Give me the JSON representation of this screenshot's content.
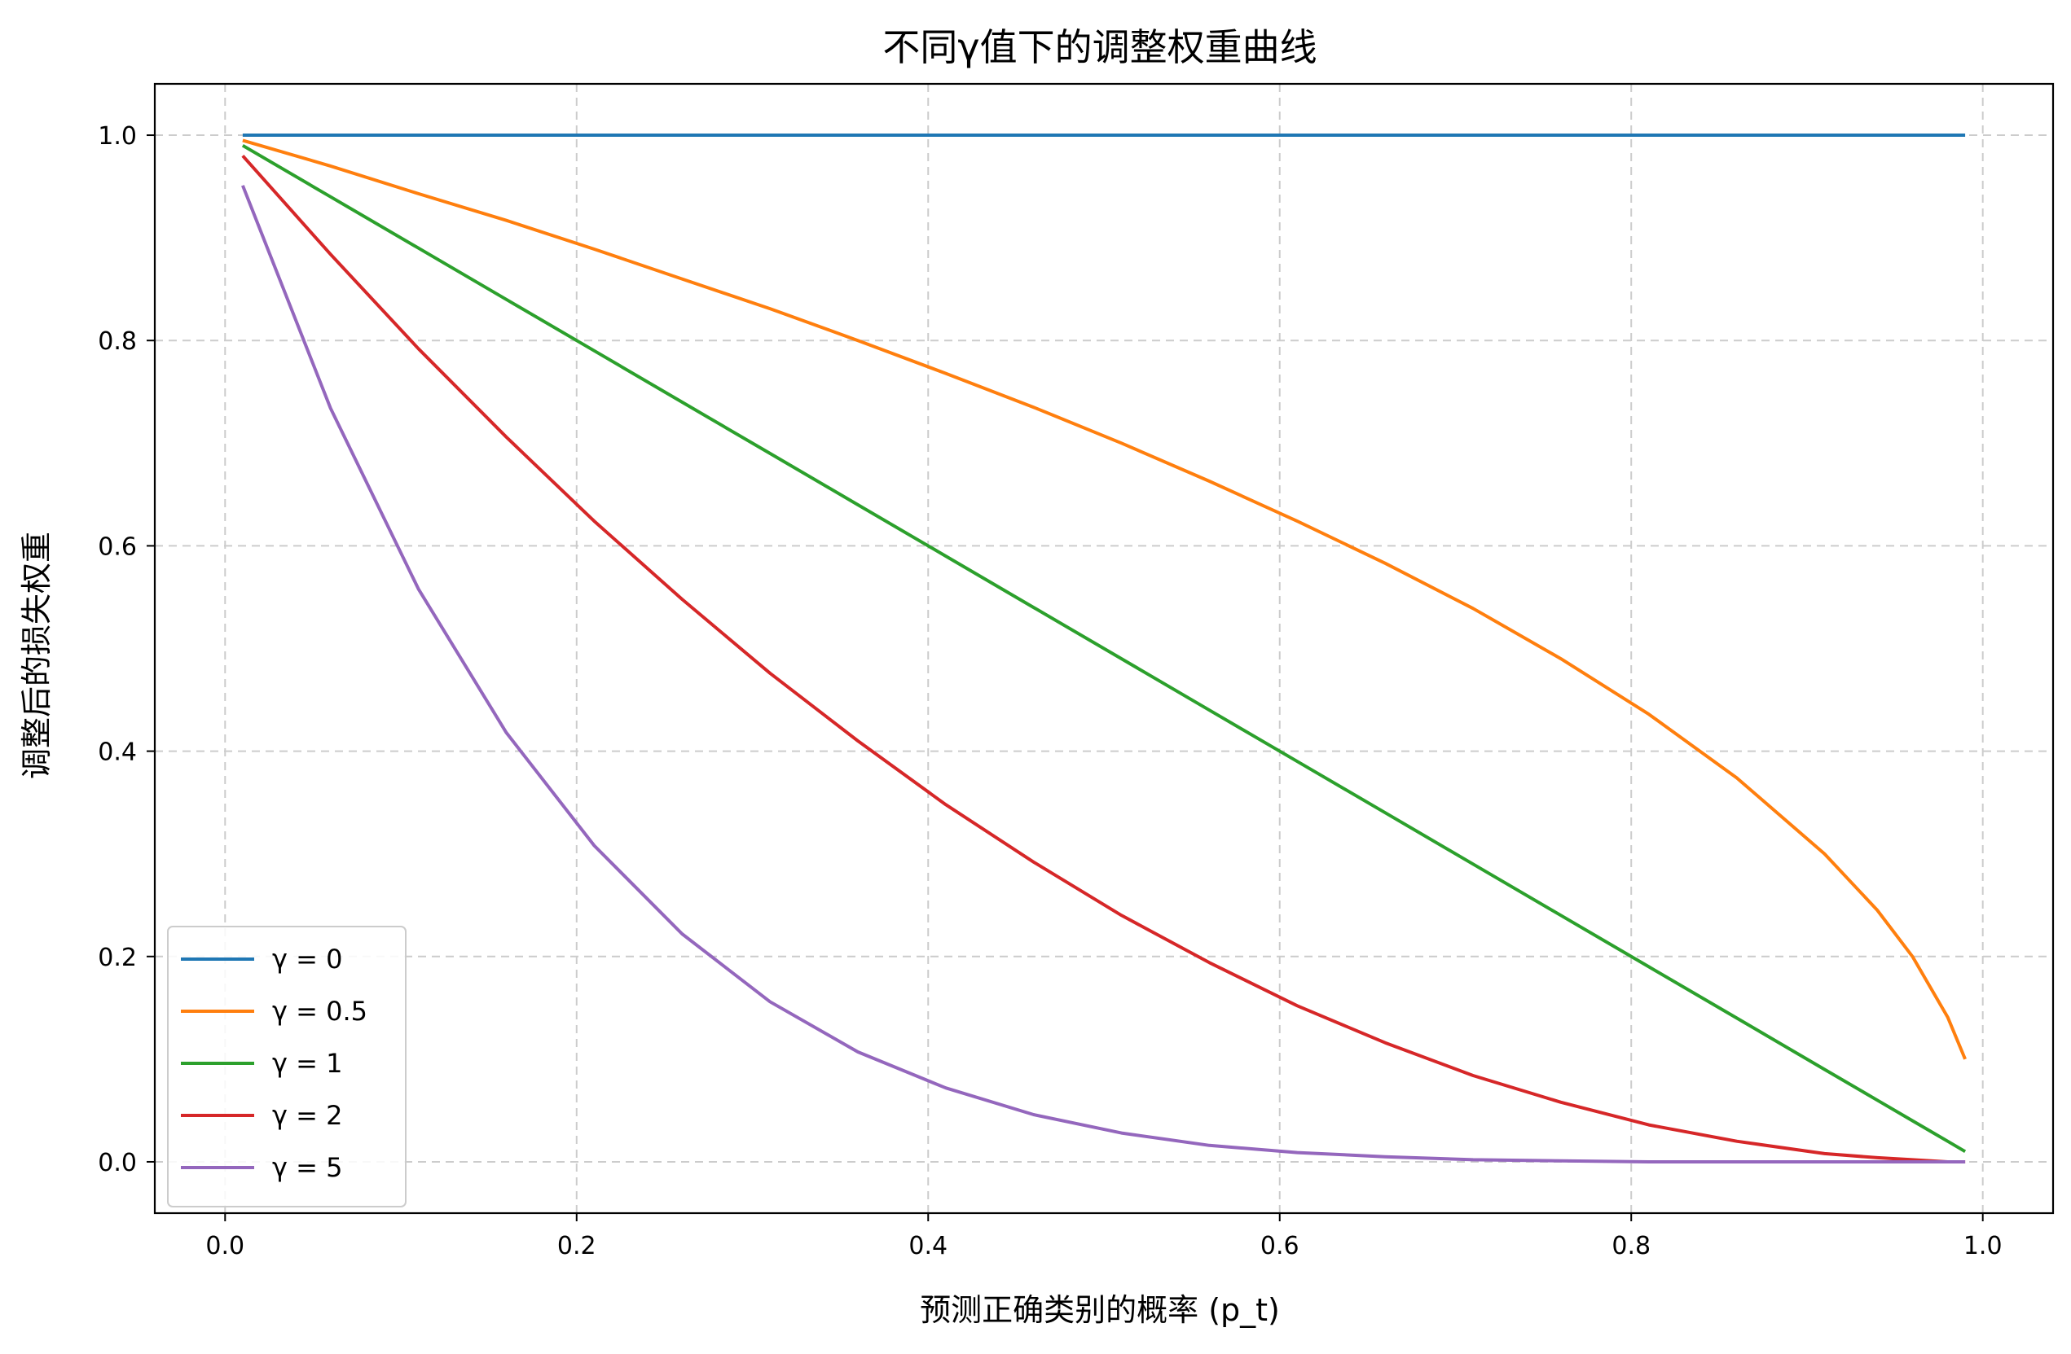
{
  "chart_data": {
    "type": "line",
    "title": "不同γ值下的调整权重曲线",
    "xlabel": "预测正确类别的概率 (p_t)",
    "ylabel": "调整后的损失权重",
    "xlim": [
      -0.04,
      1.04
    ],
    "ylim": [
      -0.05,
      1.05
    ],
    "xticks": [
      0.0,
      0.2,
      0.4,
      0.6,
      0.8,
      1.0
    ],
    "xtick_labels": [
      "0.0",
      "0.2",
      "0.4",
      "0.6",
      "0.8",
      "1.0"
    ],
    "yticks": [
      0.0,
      0.2,
      0.4,
      0.6,
      0.8,
      1.0
    ],
    "ytick_labels": [
      "0.0",
      "0.2",
      "0.4",
      "0.6",
      "0.8",
      "1.0"
    ],
    "grid": true,
    "grid_style": "dashed",
    "legend_position": "lower-left",
    "x": [
      0.01,
      0.06,
      0.11,
      0.16,
      0.21,
      0.26,
      0.31,
      0.36,
      0.41,
      0.46,
      0.51,
      0.56,
      0.61,
      0.66,
      0.71,
      0.76,
      0.81,
      0.86,
      0.91,
      0.94,
      0.96,
      0.98,
      0.99
    ],
    "series": [
      {
        "name": "γ = 0",
        "color": "#1f77b4",
        "values": [
          1.0,
          1.0,
          1.0,
          1.0,
          1.0,
          1.0,
          1.0,
          1.0,
          1.0,
          1.0,
          1.0,
          1.0,
          1.0,
          1.0,
          1.0,
          1.0,
          1.0,
          1.0,
          1.0,
          1.0,
          1.0,
          1.0,
          1.0
        ]
      },
      {
        "name": "γ = 0.5",
        "color": "#ff7f0e",
        "values": [
          0.995,
          0.97,
          0.943,
          0.917,
          0.889,
          0.86,
          0.831,
          0.8,
          0.768,
          0.735,
          0.7,
          0.663,
          0.624,
          0.583,
          0.539,
          0.49,
          0.436,
          0.374,
          0.3,
          0.245,
          0.2,
          0.141,
          0.1
        ]
      },
      {
        "name": "γ = 1",
        "color": "#2ca02c",
        "values": [
          0.99,
          0.94,
          0.89,
          0.84,
          0.79,
          0.74,
          0.69,
          0.64,
          0.59,
          0.54,
          0.49,
          0.44,
          0.39,
          0.34,
          0.29,
          0.24,
          0.19,
          0.14,
          0.09,
          0.06,
          0.04,
          0.02,
          0.01
        ]
      },
      {
        "name": "γ = 2",
        "color": "#d62728",
        "values": [
          0.98,
          0.884,
          0.792,
          0.706,
          0.624,
          0.548,
          0.476,
          0.41,
          0.348,
          0.292,
          0.24,
          0.194,
          0.152,
          0.116,
          0.084,
          0.058,
          0.036,
          0.02,
          0.008,
          0.004,
          0.002,
          0.0,
          0.0
        ]
      },
      {
        "name": "γ = 5",
        "color": "#9467bd",
        "values": [
          0.951,
          0.734,
          0.558,
          0.418,
          0.308,
          0.222,
          0.156,
          0.107,
          0.072,
          0.046,
          0.028,
          0.016,
          0.009,
          0.005,
          0.002,
          0.001,
          0.0,
          0.0,
          0.0,
          0.0,
          0.0,
          0.0,
          0.0
        ]
      }
    ]
  }
}
